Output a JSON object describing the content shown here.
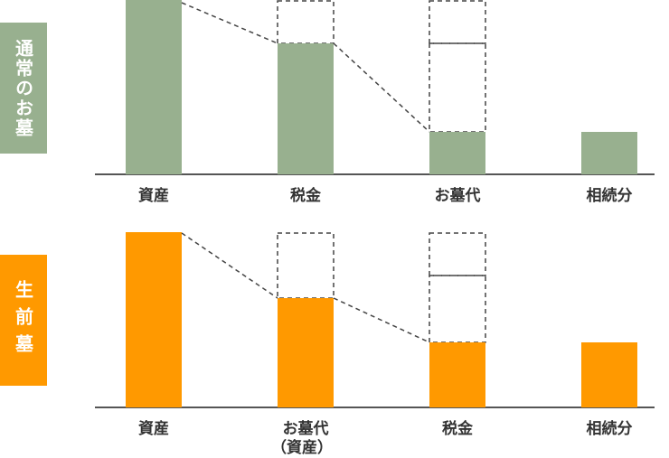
{
  "panels": {
    "normal": {
      "side_label": "通常のお墓",
      "color": "#98b08f",
      "categories": [
        "資産",
        "税金",
        "お墓代",
        "相続分"
      ],
      "category_subs": [
        "",
        "",
        "",
        ""
      ]
    },
    "pre": {
      "side_label": "生前墓",
      "color": "#ff9900",
      "categories": [
        "資産",
        "お墓代",
        "税金",
        "相続分"
      ],
      "category_subs": [
        "",
        "（資産）",
        "",
        ""
      ]
    }
  },
  "colors": {
    "dash": "#444444",
    "axis": "#555555"
  }
}
